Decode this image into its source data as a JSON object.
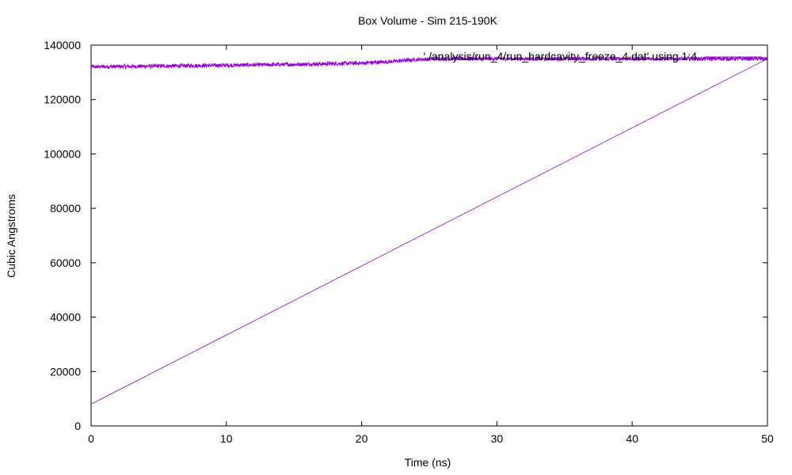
{
  "chart_data": {
    "type": "line",
    "title": "Box Volume - Sim 215-190K",
    "xlabel": "Time (ns)",
    "ylabel": "Cubic Angstroms",
    "xlim": [
      0,
      50
    ],
    "ylim": [
      0,
      140000
    ],
    "xticks": [
      0,
      10,
      20,
      30,
      40,
      50
    ],
    "yticks": [
      0,
      20000,
      40000,
      60000,
      80000,
      100000,
      120000,
      140000
    ],
    "grid": false,
    "legend_position": "top-right",
    "series": [
      {
        "name": "'./analysis/run_4/run_hardcavity_freeze_4.dat' using 1:4",
        "color": "#9400d3",
        "style": "noisy-line",
        "x": [
          0,
          5,
          10,
          15,
          20,
          22,
          24,
          26,
          28,
          30,
          35,
          40,
          45,
          50
        ],
        "y": [
          132000,
          132300,
          132600,
          132900,
          133400,
          133900,
          134700,
          135000,
          135000,
          135000,
          135000,
          135000,
          135000,
          135000
        ]
      },
      {
        "name": "",
        "color": "#9400d3",
        "style": "line",
        "x": [
          0,
          50
        ],
        "y": [
          8000,
          135000
        ]
      }
    ]
  }
}
